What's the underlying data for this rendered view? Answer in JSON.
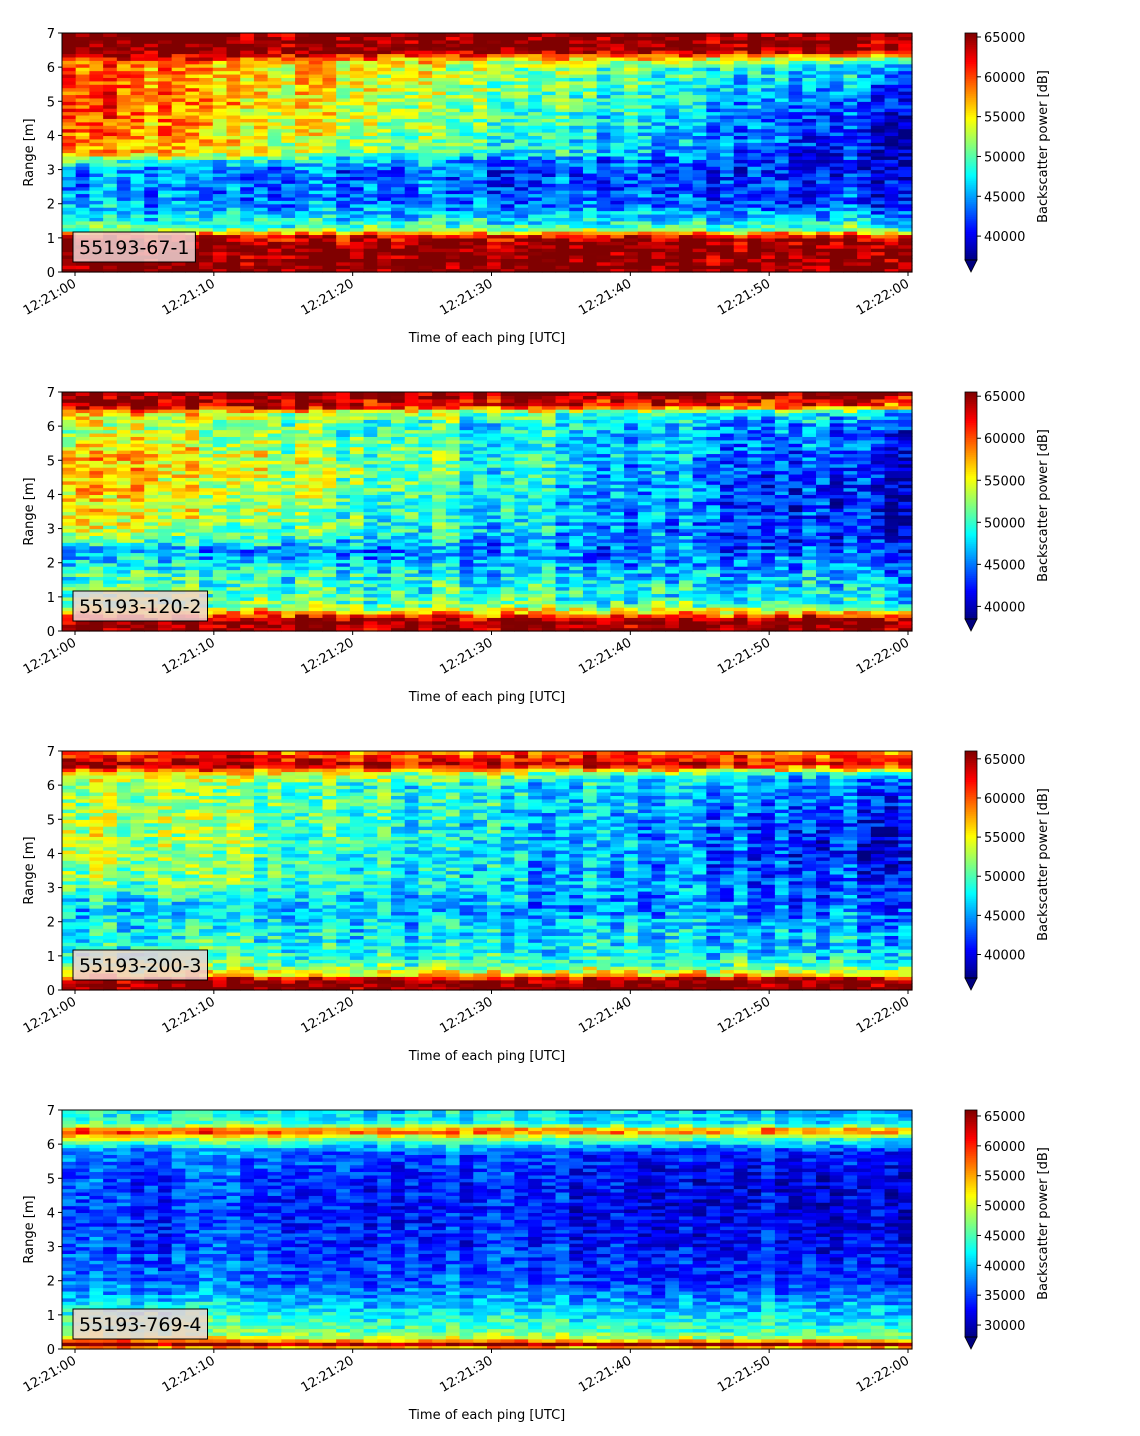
{
  "chart_data": [
    {
      "type": "heatmap",
      "label": "55193-67-1",
      "xlabel": "Time of each ping [UTC]",
      "ylabel": "Range [m]",
      "x_ticks": [
        "12:21:00",
        "12:21:10",
        "12:21:20",
        "12:21:30",
        "12:21:40",
        "12:21:50",
        "12:22:00"
      ],
      "xlim": [
        "12:21:00",
        "12:22:00"
      ],
      "y_ticks": [
        0,
        1,
        2,
        3,
        4,
        5,
        6,
        7
      ],
      "ylim": [
        0,
        7
      ],
      "colorbar": {
        "label": "Backscatter power [dB]",
        "ticks": [
          40000,
          45000,
          50000,
          55000,
          60000,
          65000
        ],
        "range": [
          37000,
          65500
        ],
        "colormap": "jet",
        "extend": "min"
      },
      "profile": {
        "depths": [
          0,
          0.25,
          0.8,
          1.1,
          1.2,
          1.5,
          2.0,
          2.9,
          3.3,
          3.5,
          4.0,
          5.0,
          6.0,
          6.2,
          6.5,
          7.0
        ],
        "start": [
          65500,
          65500,
          65500,
          62000,
          52000,
          48000,
          45000,
          44000,
          50000,
          58000,
          59000,
          60000,
          59000,
          61000,
          65500,
          65500
        ],
        "end": [
          65500,
          65500,
          65500,
          62000,
          52000,
          47000,
          42000,
          41000,
          40000,
          40000,
          40000,
          42000,
          46000,
          50000,
          65500,
          65500
        ]
      }
    },
    {
      "type": "heatmap",
      "label": "55193-120-2",
      "xlabel": "Time of each ping [UTC]",
      "ylabel": "Range [m]",
      "x_ticks": [
        "12:21:00",
        "12:21:10",
        "12:21:20",
        "12:21:30",
        "12:21:40",
        "12:21:50",
        "12:22:00"
      ],
      "xlim": [
        "12:21:00",
        "12:22:00"
      ],
      "y_ticks": [
        0,
        1,
        2,
        3,
        4,
        5,
        6,
        7
      ],
      "ylim": [
        0,
        7
      ],
      "colorbar": {
        "label": "Backscatter power [dB]",
        "ticks": [
          40000,
          45000,
          50000,
          55000,
          60000,
          65000
        ],
        "range": [
          38500,
          65500
        ],
        "colormap": "jet",
        "extend": "min"
      },
      "profile": {
        "depths": [
          0,
          0.3,
          0.55,
          0.75,
          1.0,
          1.8,
          2.4,
          2.7,
          3.0,
          4.0,
          5.0,
          6.0,
          6.4,
          6.6,
          7.0
        ],
        "start": [
          65500,
          65500,
          58000,
          53000,
          52000,
          50000,
          46000,
          52000,
          55000,
          57000,
          58000,
          54000,
          57000,
          65500,
          65500
        ],
        "end": [
          65500,
          65500,
          57000,
          50000,
          48000,
          46000,
          44000,
          42000,
          41000,
          41000,
          42000,
          44000,
          47000,
          60000,
          65500
        ]
      }
    },
    {
      "type": "heatmap",
      "label": "55193-200-3",
      "xlabel": "Time of each ping [UTC]",
      "ylabel": "Range [m]",
      "x_ticks": [
        "12:21:00",
        "12:21:10",
        "12:21:20",
        "12:21:30",
        "12:21:40",
        "12:21:50",
        "12:22:00"
      ],
      "xlim": [
        "12:21:00",
        "12:22:00"
      ],
      "y_ticks": [
        0,
        1,
        2,
        3,
        4,
        5,
        6,
        7
      ],
      "ylim": [
        0,
        7
      ],
      "colorbar": {
        "label": "Backscatter power [dB]",
        "ticks": [
          40000,
          45000,
          50000,
          55000,
          60000,
          65000
        ],
        "range": [
          37000,
          66000
        ],
        "colormap": "jet",
        "extend": "min"
      },
      "profile": {
        "depths": [
          0,
          0.3,
          0.45,
          0.7,
          1.0,
          2.0,
          2.5,
          3.0,
          4.0,
          5.0,
          6.0,
          6.3,
          6.6,
          7.0
        ],
        "start": [
          66000,
          66000,
          57000,
          52000,
          50000,
          48000,
          47000,
          52000,
          54000,
          54000,
          53000,
          56000,
          66000,
          60000
        ],
        "end": [
          66000,
          66000,
          56000,
          50000,
          47000,
          45000,
          43000,
          42000,
          40000,
          41000,
          43000,
          46000,
          62000,
          58000
        ]
      }
    },
    {
      "type": "heatmap",
      "label": "55193-769-4",
      "xlabel": "Time of each ping [UTC]",
      "ylabel": "Range [m]",
      "x_ticks": [
        "12:21:00",
        "12:21:10",
        "12:21:20",
        "12:21:30",
        "12:21:40",
        "12:21:50",
        "12:22:00"
      ],
      "xlim": [
        "12:21:00",
        "12:22:00"
      ],
      "y_ticks": [
        0,
        1,
        2,
        3,
        4,
        5,
        6,
        7
      ],
      "ylim": [
        0,
        7
      ],
      "colorbar": {
        "label": "Backscatter power [dB]",
        "ticks": [
          30000,
          35000,
          40000,
          45000,
          50000,
          55000,
          60000,
          65000
        ],
        "range": [
          28000,
          66000
        ],
        "colormap": "jet",
        "extend": "min"
      },
      "profile": {
        "depths": [
          0,
          0.15,
          0.3,
          0.5,
          1.0,
          1.5,
          2.0,
          3.0,
          4.0,
          5.0,
          5.8,
          6.2,
          6.4,
          6.6,
          7.0
        ],
        "start": [
          50000,
          66000,
          52000,
          47000,
          44000,
          40000,
          37000,
          36000,
          35000,
          36000,
          38000,
          50000,
          62000,
          45000,
          42000
        ],
        "end": [
          50000,
          66000,
          50000,
          45000,
          41000,
          38000,
          35000,
          33000,
          32000,
          32000,
          34000,
          45000,
          58000,
          42000,
          40000
        ]
      }
    }
  ]
}
